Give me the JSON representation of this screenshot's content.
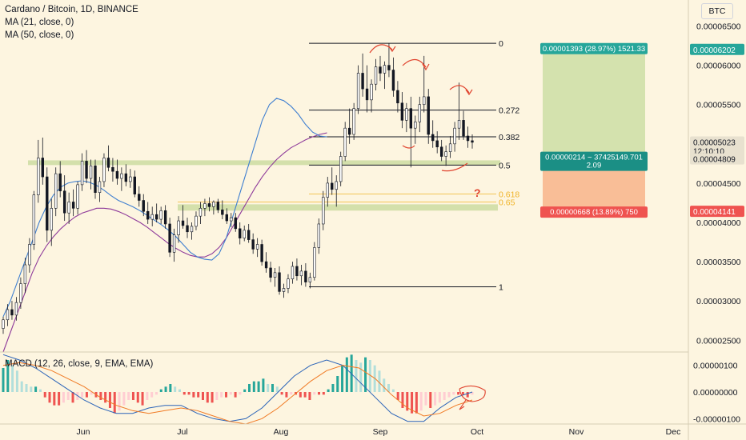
{
  "legend": {
    "title": "Cardano / Bitcoin, 1D, BINANCE",
    "ma21": "MA (21, close, 0)",
    "ma50": "MA (50, close, 0)",
    "macd": "MACD (12, 26, close, 9, EMA, EMA)",
    "currency": "BTC"
  },
  "colors": {
    "background": "#fdf5e0",
    "up_candle": "#26a69a",
    "down_candle": "#ef5350",
    "ma21": "#3f7fd0",
    "ma50": "#8e3a9a",
    "fib_line": "#131722",
    "fib_gold": "#f0b429",
    "zone": "#c6d89a",
    "profit_box": "#cfe0a8",
    "loss_box": "#f8b48a",
    "arrow": "#e0442f",
    "macd_line": "#2a63b8",
    "signal_line": "#f07a24"
  },
  "chart_data": {
    "type": "candlestick",
    "title": "Cardano / Bitcoin, 1D, BINANCE",
    "symbol": "ADA/BTC",
    "timeframe": "1D",
    "exchange": "BINANCE",
    "x_ticks": [
      "Jun",
      "Jul",
      "Aug",
      "Sep",
      "Oct",
      "Nov",
      "Dec"
    ],
    "y_ticks": [
      "0.00006500",
      "0.00006000",
      "0.00005500",
      "0.00005000",
      "0.00004500",
      "0.00004000",
      "0.00003500",
      "0.00003000",
      "0.00002500"
    ],
    "ylim": [
      2.35e-05,
      6.75e-05
    ],
    "macd_ticks": [
      "0.00000100",
      "0.00000000",
      "-0.00000100"
    ],
    "macd_ylim": [
      -1.2e-06,
      1.5e-06
    ],
    "fib_levels": [
      {
        "label": "0",
        "price": 6.28e-05
      },
      {
        "label": "0.272",
        "price": 5.43e-05
      },
      {
        "label": "0.382",
        "price": 5.09e-05
      },
      {
        "label": "0.5",
        "price": 4.73e-05
      },
      {
        "label": "0.618",
        "price": 4.36e-05
      },
      {
        "label": "0.65",
        "price": 4.26e-05
      },
      {
        "label": "1",
        "price": 3.18e-05
      }
    ],
    "position": {
      "target_label": "0.00001393 (28.97%) 1521.33",
      "entry_label_1": "0.00000214 ~ 37425149.701",
      "entry_label_2": "2.09",
      "stop_label": "0.00000668 (13.89%) 750",
      "target_price": "0.00006202",
      "current_price": "0.00005023",
      "countdown": "12:10:10",
      "entry_price": "0.00004809",
      "stop_price": "0.00004141"
    },
    "question_mark": "?",
    "zones": [
      {
        "from": 4.73e-05,
        "to": 4.79e-05
      },
      {
        "from": 4.15e-05,
        "to": 4.23e-05
      }
    ],
    "candles": [
      [
        2.65e-05,
        2.8e-05,
        2.58e-05,
        2.76e-05
      ],
      [
        2.76e-05,
        2.96e-05,
        2.68e-05,
        2.89e-05
      ],
      [
        2.89e-05,
        3e-05,
        2.76e-05,
        2.82e-05
      ],
      [
        2.82e-05,
        3.05e-05,
        2.75e-05,
        2.98e-05
      ],
      [
        2.98e-05,
        3.3e-05,
        2.9e-05,
        3.22e-05
      ],
      [
        3.22e-05,
        3.55e-05,
        3.1e-05,
        3.46e-05
      ],
      [
        3.46e-05,
        3.8e-05,
        3.36e-05,
        3.72e-05
      ],
      [
        3.72e-05,
        4.4e-05,
        3.65e-05,
        4.35e-05
      ],
      [
        4.35e-05,
        5.05e-05,
        4.25e-05,
        4.82e-05
      ],
      [
        4.82e-05,
        5.08e-05,
        4.48e-05,
        4.58e-05
      ],
      [
        4.58e-05,
        4.7e-05,
        3.75e-05,
        3.9e-05
      ],
      [
        3.9e-05,
        4.3e-05,
        3.7e-05,
        4.18e-05
      ],
      [
        4.18e-05,
        4.7e-05,
        4.08e-05,
        4.62e-05
      ],
      [
        4.62e-05,
        4.78e-05,
        4.32e-05,
        4.4e-05
      ],
      [
        4.4e-05,
        4.6e-05,
        4.02e-05,
        4.12e-05
      ],
      [
        4.12e-05,
        4.38e-05,
        3.98e-05,
        4.26e-05
      ],
      [
        4.26e-05,
        4.42e-05,
        4.08e-05,
        4.18e-05
      ],
      [
        4.18e-05,
        4.52e-05,
        4.1e-05,
        4.48e-05
      ],
      [
        4.48e-05,
        4.88e-05,
        4.4e-05,
        4.78e-05
      ],
      [
        4.78e-05,
        4.92e-05,
        4.5e-05,
        4.56e-05
      ],
      [
        4.56e-05,
        4.8e-05,
        4.42e-05,
        4.72e-05
      ],
      [
        4.72e-05,
        4.8e-05,
        4.3e-05,
        4.38e-05
      ],
      [
        4.38e-05,
        4.58e-05,
        4.26e-05,
        4.52e-05
      ],
      [
        4.52e-05,
        4.88e-05,
        4.45e-05,
        4.82e-05
      ],
      [
        4.82e-05,
        4.98e-05,
        4.65e-05,
        4.7e-05
      ],
      [
        4.7e-05,
        4.82e-05,
        4.52e-05,
        4.65e-05
      ],
      [
        4.65e-05,
        4.8e-05,
        4.48e-05,
        4.56e-05
      ],
      [
        4.56e-05,
        4.7e-05,
        4.4e-05,
        4.62e-05
      ],
      [
        4.62e-05,
        4.74e-05,
        4.46e-05,
        4.52e-05
      ],
      [
        4.52e-05,
        4.68e-05,
        4.44e-05,
        4.58e-05
      ],
      [
        4.58e-05,
        4.66e-05,
        4.32e-05,
        4.36e-05
      ],
      [
        4.36e-05,
        4.46e-05,
        4.2e-05,
        4.28e-05
      ],
      [
        4.28e-05,
        4.36e-05,
        4.08e-05,
        4.14e-05
      ],
      [
        4.14e-05,
        4.26e-05,
        3.98e-05,
        4.04e-05
      ],
      [
        4.04e-05,
        4.2e-05,
        3.95e-05,
        4.1e-05
      ],
      [
        4.1e-05,
        4.24e-05,
        4e-05,
        4.04e-05
      ],
      [
        4.04e-05,
        4.2e-05,
        3.98e-05,
        4.15e-05
      ],
      [
        4.15e-05,
        4.22e-05,
        3.92e-05,
        3.98e-05
      ],
      [
        3.98e-05,
        4.06e-05,
        3.56e-05,
        3.62e-05
      ],
      [
        3.62e-05,
        3.92e-05,
        3.5e-05,
        3.84e-05
      ],
      [
        3.84e-05,
        4.08e-05,
        3.74e-05,
        4.02e-05
      ],
      [
        4.02e-05,
        4.22e-05,
        3.92e-05,
        3.96e-05
      ],
      [
        3.96e-05,
        4.06e-05,
        3.8e-05,
        3.88e-05
      ],
      [
        3.88e-05,
        4e-05,
        3.78e-05,
        3.95e-05
      ],
      [
        3.95e-05,
        4.14e-05,
        3.9e-05,
        4.08e-05
      ],
      [
        4.08e-05,
        4.26e-05,
        3.98e-05,
        4.18e-05
      ],
      [
        4.18e-05,
        4.3e-05,
        4.08e-05,
        4.24e-05
      ],
      [
        4.24e-05,
        4.32e-05,
        4.14e-05,
        4.2e-05
      ],
      [
        4.2e-05,
        4.28e-05,
        4.1e-05,
        4.26e-05
      ],
      [
        4.26e-05,
        4.3e-05,
        4.12e-05,
        4.16e-05
      ],
      [
        4.16e-05,
        4.28e-05,
        4.04e-05,
        4.1e-05
      ],
      [
        4.1e-05,
        4.18e-05,
        3.98e-05,
        4.02e-05
      ],
      [
        4.02e-05,
        4.12e-05,
        3.94e-05,
        4.06e-05
      ],
      [
        4.06e-05,
        4.12e-05,
        3.88e-05,
        3.92e-05
      ],
      [
        3.92e-05,
        4e-05,
        3.72e-05,
        3.8e-05
      ],
      [
        3.8e-05,
        3.96e-05,
        3.76e-05,
        3.9e-05
      ],
      [
        3.9e-05,
        3.98e-05,
        3.74e-05,
        3.78e-05
      ],
      [
        3.78e-05,
        3.86e-05,
        3.6e-05,
        3.66e-05
      ],
      [
        3.66e-05,
        3.8e-05,
        3.56e-05,
        3.72e-05
      ],
      [
        3.72e-05,
        3.78e-05,
        3.45e-05,
        3.5e-05
      ],
      [
        3.5e-05,
        3.62e-05,
        3.36e-05,
        3.42e-05
      ],
      [
        3.42e-05,
        3.5e-05,
        3.24e-05,
        3.3e-05
      ],
      [
        3.3e-05,
        3.42e-05,
        3.18e-05,
        3.36e-05
      ],
      [
        3.36e-05,
        3.44e-05,
        3.08e-05,
        3.12e-05
      ],
      [
        3.12e-05,
        3.22e-05,
        3.04e-05,
        3.16e-05
      ],
      [
        3.16e-05,
        3.34e-05,
        3.1e-05,
        3.28e-05
      ],
      [
        3.28e-05,
        3.5e-05,
        3.22e-05,
        3.44e-05
      ],
      [
        3.44e-05,
        3.54e-05,
        3.26e-05,
        3.32e-05
      ],
      [
        3.32e-05,
        3.46e-05,
        3.2e-05,
        3.38e-05
      ],
      [
        3.38e-05,
        3.48e-05,
        3.18e-05,
        3.24e-05
      ],
      [
        3.24e-05,
        3.36e-05,
        3.16e-05,
        3.3e-05
      ],
      [
        3.3e-05,
        3.75e-05,
        3.26e-05,
        3.68e-05
      ],
      [
        3.68e-05,
        4.05e-05,
        3.6e-05,
        3.98e-05
      ],
      [
        3.98e-05,
        4.4e-05,
        3.9e-05,
        4.32e-05
      ],
      [
        4.32e-05,
        4.58e-05,
        4.2e-05,
        4.5e-05
      ],
      [
        4.5e-05,
        4.7e-05,
        4.35e-05,
        4.42e-05
      ],
      [
        4.42e-05,
        4.6e-05,
        4.2e-05,
        4.52e-05
      ],
      [
        4.52e-05,
        4.9e-05,
        4.46e-05,
        4.84e-05
      ],
      [
        4.84e-05,
        5.28e-05,
        4.78e-05,
        5.2e-05
      ],
      [
        5.2e-05,
        5.45e-05,
        5e-05,
        5.12e-05
      ],
      [
        5.12e-05,
        5.52e-05,
        5.05e-05,
        5.45e-05
      ],
      [
        5.45e-05,
        6e-05,
        5.38e-05,
        5.9e-05
      ],
      [
        5.9e-05,
        6.15e-05,
        5.6e-05,
        5.7e-05
      ],
      [
        5.7e-05,
        6e-05,
        5.4e-05,
        5.56e-05
      ],
      [
        5.56e-05,
        5.82e-05,
        5.4e-05,
        5.76e-05
      ],
      [
        5.76e-05,
        6.08e-05,
        5.68e-05,
        5.98e-05
      ],
      [
        5.98e-05,
        6.12e-05,
        5.8e-05,
        5.9e-05
      ],
      [
        5.9e-05,
        6.05e-05,
        5.7e-05,
        6e-05
      ],
      [
        6e-05,
        6.28e-05,
        5.85e-05,
        5.94e-05
      ],
      [
        5.94e-05,
        6.1e-05,
        5.6e-05,
        5.68e-05
      ],
      [
        5.68e-05,
        5.8e-05,
        5.4e-05,
        5.52e-05
      ],
      [
        5.52e-05,
        5.66e-05,
        5.2e-05,
        5.3e-05
      ],
      [
        5.3e-05,
        5.52e-05,
        5.15e-05,
        5.45e-05
      ],
      [
        5.45e-05,
        5.6e-05,
        4.7e-05,
        5.2e-05
      ],
      [
        5.2e-05,
        5.36e-05,
        5e-05,
        5.28e-05
      ],
      [
        5.28e-05,
        5.6e-05,
        5.15e-05,
        5.5e-05
      ],
      [
        5.5e-05,
        6.12e-05,
        5.4e-05,
        5.6e-05
      ],
      [
        5.6e-05,
        5.7e-05,
        5e-05,
        5.12e-05
      ],
      [
        5.12e-05,
        5.3e-05,
        4.95e-05,
        5.04e-05
      ],
      [
        5.04e-05,
        5.16e-05,
        4.88e-05,
        4.96e-05
      ],
      [
        4.96e-05,
        5.05e-05,
        4.78e-05,
        4.84e-05
      ],
      [
        4.84e-05,
        4.98e-05,
        4.72e-05,
        4.9e-05
      ],
      [
        4.9e-05,
        5.1e-05,
        4.82e-05,
        5e-05
      ],
      [
        5e-05,
        5.28e-05,
        4.9e-05,
        5.2e-05
      ],
      [
        5.2e-05,
        5.78e-05,
        5.05e-05,
        5.3e-05
      ],
      [
        5.3e-05,
        5.42e-05,
        5.05e-05,
        5.1e-05
      ],
      [
        5.1e-05,
        5.22e-05,
        4.95e-05,
        5.04e-05
      ],
      [
        5.04e-05,
        5.12e-05,
        4.94e-05,
        5.02e-05
      ]
    ],
    "ma21": [
      2.8e-05,
      3e-05,
      3.25e-05,
      3.5e-05,
      3.75e-05,
      4e-05,
      4.2e-05,
      4.35e-05,
      4.45e-05,
      4.5e-05,
      4.52e-05,
      4.53e-05,
      4.51e-05,
      4.47e-05,
      4.41e-05,
      4.34e-05,
      4.28e-05,
      4.24e-05,
      4.2e-05,
      4.15e-05,
      4.09e-05,
      4.03e-05,
      3.97e-05,
      3.9e-05,
      3.82e-05,
      3.72e-05,
      3.62e-05,
      3.56e-05,
      3.53e-05,
      3.52e-05,
      3.6e-05,
      3.8e-05,
      4.1e-05,
      4.4e-05,
      4.7e-05,
      5e-05,
      5.3e-05,
      5.5e-05,
      5.58e-05,
      5.55e-05,
      5.48e-05,
      5.38e-05,
      5.25e-05,
      5.15e-05,
      5.1e-05,
      5.09e-05
    ],
    "ma50": [
      2.35e-05,
      2.6e-05,
      2.85e-05,
      3.1e-05,
      3.35e-05,
      3.55e-05,
      3.7e-05,
      3.82e-05,
      3.92e-05,
      4e-05,
      4.07e-05,
      4.12e-05,
      4.15e-05,
      4.18e-05,
      4.18e-05,
      4.17e-05,
      4.14e-05,
      4.1e-05,
      4.05e-05,
      4e-05,
      3.94e-05,
      3.87e-05,
      3.8e-05,
      3.73e-05,
      3.67e-05,
      3.62e-05,
      3.58e-05,
      3.56e-05,
      3.56e-05,
      3.6e-05,
      3.68e-05,
      3.8e-05,
      3.96e-05,
      4.12e-05,
      4.28e-05,
      4.44e-05,
      4.58e-05,
      4.7e-05,
      4.8e-05,
      4.88e-05,
      4.95e-05,
      5e-05,
      5.05e-05,
      5.09e-05,
      5.12e-05,
      5.14e-05
    ],
    "macd_hist": [
      9e-07,
      1.2e-06,
      1e-06,
      8e-07,
      4e-07,
      3e-07,
      2e-07,
      2e-07,
      1e-07,
      -2e-07,
      -4e-07,
      -5e-07,
      -5e-07,
      -4e-07,
      -3e-07,
      -4e-07,
      -3e-07,
      -2e-07,
      -2e-07,
      -1e-07,
      -2e-07,
      -3e-07,
      -4e-07,
      -6e-07,
      -8e-07,
      -7e-07,
      -5e-07,
      -3e-07,
      -3e-07,
      -4e-07,
      -5e-07,
      -3e-07,
      -2e-07,
      -1e-07,
      1e-07,
      2e-07,
      3e-07,
      2e-07,
      1e-07,
      -1e-07,
      -1e-07,
      -2e-07,
      -2e-07,
      -3e-07,
      -4e-07,
      -4e-07,
      -3e-07,
      -2e-07,
      -2e-07,
      -1e-07,
      -2e-07,
      -1e-07,
      1e-07,
      3e-07,
      4e-07,
      4e-07,
      5e-07,
      3e-07,
      3e-07,
      2e-07,
      -1e-07,
      -2e-07,
      -1e-07,
      -1e-07,
      -2e-07,
      -2e-07,
      -3e-07,
      -1e-07,
      -1e-07,
      -1e-07,
      1e-07,
      3e-07,
      6e-07,
      1e-06,
      1.3e-06,
      1.4e-06,
      1.2e-06,
      1.1e-06,
      1.3e-06,
      1.2e-06,
      1e-06,
      8e-07,
      5e-07,
      3e-07,
      1e-07,
      -3e-07,
      -6e-07,
      -7e-07,
      -8e-07,
      -8e-07,
      -7e-07,
      -5e-07,
      -6e-07,
      -5e-07,
      -4e-07,
      -3e-07,
      -2e-07,
      -1e-07,
      -1e-07,
      -1e-07,
      -2e-07,
      -1e-07
    ],
    "macd_line": [
      1.4e-06,
      1.2e-06,
      9e-07,
      5e-07,
      1e-07,
      -3e-07,
      -6e-07,
      -8e-07,
      -8e-07,
      -6e-07,
      -5e-07,
      -5e-07,
      -8e-07,
      -1e-06,
      -1.1e-06,
      -1e-06,
      -6e-07,
      0.0,
      6e-07,
      1e-06,
      1.2e-06,
      1e-06,
      4e-07,
      -2e-07,
      -8e-07,
      -1.1e-06,
      -1.1e-06,
      -6e-07,
      -2e-07,
      0.0
    ],
    "signal_line": [
      1e-06,
      1.1e-06,
      1e-06,
      8e-07,
      5e-07,
      2e-07,
      -2e-07,
      -5e-07,
      -7e-07,
      -8e-07,
      -7e-07,
      -6e-07,
      -7e-07,
      -9e-07,
      -1.1e-06,
      -1.2e-06,
      -1e-06,
      -6e-07,
      -1e-07,
      4e-07,
      8e-07,
      1e-06,
      9e-07,
      5e-07,
      -1e-07,
      -6e-07,
      -9e-07,
      -8e-07,
      -5e-07,
      -3e-07
    ]
  }
}
